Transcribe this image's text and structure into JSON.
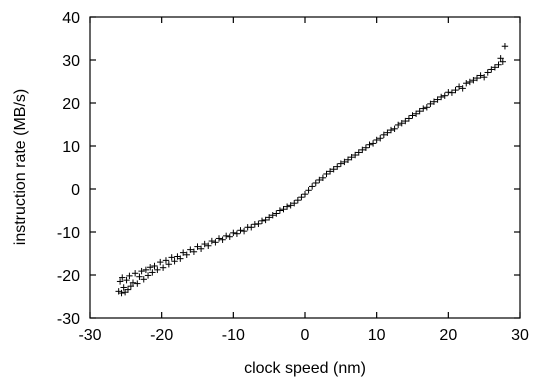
{
  "chart_data": {
    "type": "scatter",
    "marker": "+",
    "marker_color": "#000000",
    "xlabel": "clock speed (nm)",
    "ylabel": "instruction rate (MB/s)",
    "xlim": [
      -30,
      30
    ],
    "ylim": [
      -30,
      40
    ],
    "xticks": [
      -30,
      -20,
      -10,
      0,
      10,
      20,
      30
    ],
    "yticks": [
      -30,
      -20,
      -10,
      0,
      10,
      20,
      30,
      40
    ],
    "grid": false,
    "legend": "none",
    "series": [
      {
        "x": [
          -26.0,
          -25.8,
          -25.6,
          -25.5,
          -25.3,
          -25.1,
          -24.9,
          -24.7,
          -24.5,
          -24.3,
          -24.0,
          -23.7,
          -23.4,
          -23.1,
          -22.8,
          -22.5,
          -22.2,
          -21.9,
          -21.6,
          -21.3,
          -21.0,
          -20.6,
          -20.2,
          -19.8,
          -19.4,
          -19.0,
          -18.6,
          -18.2,
          -17.8,
          -17.4,
          -17.0,
          -16.5,
          -16.0,
          -15.5,
          -15.0,
          -14.5,
          -14.0,
          -13.5,
          -13.0,
          -12.5,
          -12.0,
          -11.5,
          -11.0,
          -10.5,
          -10.0,
          -9.5,
          -9.0,
          -8.5,
          -8.0,
          -7.5,
          -7.0,
          -6.5,
          -6.0,
          -5.5,
          -5.0,
          -4.5,
          -4.0,
          -3.5,
          -3.0,
          -2.5,
          -2.0,
          -1.5,
          -1.0,
          -0.5,
          0.0,
          0.5,
          1.0,
          1.5,
          2.0,
          2.5,
          3.0,
          3.5,
          4.0,
          4.5,
          5.0,
          5.5,
          6.0,
          6.5,
          7.0,
          7.5,
          8.0,
          8.5,
          9.0,
          9.5,
          10.0,
          10.5,
          11.0,
          11.5,
          12.0,
          12.5,
          13.0,
          13.5,
          14.0,
          14.5,
          15.0,
          15.5,
          16.0,
          16.5,
          17.0,
          17.5,
          18.0,
          18.5,
          19.0,
          19.5,
          20.0,
          20.5,
          21.0,
          21.5,
          22.0,
          22.5,
          23.0,
          23.5,
          24.0,
          24.5,
          25.0,
          25.5,
          26.0,
          26.5,
          27.0,
          27.3,
          27.6,
          27.9
        ],
        "y": [
          -23.8,
          -21.5,
          -24.2,
          -20.6,
          -22.9,
          -24.0,
          -21.2,
          -23.4,
          -20.2,
          -22.6,
          -21.8,
          -19.6,
          -22.0,
          -20.4,
          -19.1,
          -21.0,
          -18.8,
          -20.1,
          -18.2,
          -19.4,
          -17.9,
          -18.8,
          -17.0,
          -18.3,
          -16.6,
          -17.5,
          -15.9,
          -16.8,
          -15.7,
          -16.2,
          -14.8,
          -15.3,
          -14.1,
          -14.6,
          -13.4,
          -13.9,
          -12.8,
          -13.2,
          -12.1,
          -12.4,
          -11.5,
          -11.8,
          -10.9,
          -11.1,
          -10.2,
          -10.4,
          -9.6,
          -9.8,
          -8.9,
          -8.9,
          -8.2,
          -8.1,
          -7.4,
          -7.2,
          -6.6,
          -6.1,
          -5.7,
          -5.0,
          -4.7,
          -4.1,
          -3.8,
          -3.3,
          -2.6,
          -1.9,
          -1.2,
          -0.3,
          0.6,
          1.4,
          2.1,
          2.6,
          3.5,
          4.1,
          4.6,
          5.2,
          5.9,
          6.3,
          6.8,
          7.4,
          7.9,
          8.5,
          9.1,
          9.6,
          10.3,
          10.6,
          11.4,
          11.8,
          12.6,
          13.1,
          13.7,
          14.0,
          14.9,
          15.3,
          15.8,
          16.4,
          17.1,
          17.5,
          18.1,
          18.7,
          19.0,
          19.8,
          20.3,
          20.8,
          21.4,
          21.7,
          22.5,
          22.4,
          23.0,
          23.8,
          23.4,
          24.6,
          24.9,
          25.3,
          25.8,
          26.4,
          26.0,
          27.1,
          27.8,
          28.3,
          28.9,
          30.4,
          29.6,
          33.2
        ]
      }
    ]
  }
}
